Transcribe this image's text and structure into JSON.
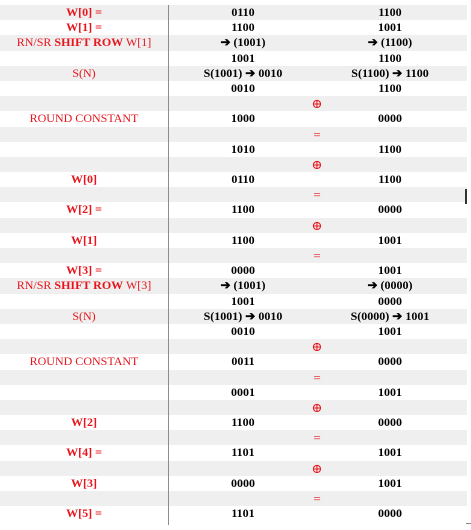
{
  "rows": [
    {
      "c1": "W[0] =",
      "c1_bold": true,
      "c2": "0110",
      "c3": "1100",
      "op": ""
    },
    {
      "c1": "W[1] =",
      "c1_bold": true,
      "c2": "1100",
      "c3": "1001",
      "op": ""
    },
    {
      "c1": "RN/SR SHIFT ROW W[1]",
      "c1_bold": false,
      "c2": "➔ (1001)",
      "c3": "➔ (1100)",
      "op": ""
    },
    {
      "c1": "",
      "c1_bold": false,
      "c2": "1001",
      "c3": "1100",
      "op": ""
    },
    {
      "c1": "S(N)",
      "c1_bold": false,
      "c2": "S(1001) ➔ 0010",
      "c3": "S(1100) ➔ 1100",
      "op": ""
    },
    {
      "c1": "",
      "c1_bold": false,
      "c2": "0010",
      "c3": "1100",
      "op": ""
    },
    {
      "c1": "",
      "c1_bold": false,
      "c2": "",
      "c3": "",
      "op": "⊕"
    },
    {
      "c1": "ROUND CONSTANT",
      "c1_bold": false,
      "c2": "1000",
      "c3": "0000",
      "op": ""
    },
    {
      "c1": "",
      "c1_bold": false,
      "c2": "",
      "c3": "",
      "op": "="
    },
    {
      "c1": "",
      "c1_bold": false,
      "c2": "1010",
      "c3": "1100",
      "op": ""
    },
    {
      "c1": "",
      "c1_bold": false,
      "c2": "",
      "c3": "",
      "op": "⊕"
    },
    {
      "c1": "W[0]",
      "c1_bold": true,
      "c2": "0110",
      "c3": "1100",
      "op": ""
    },
    {
      "c1": "",
      "c1_bold": false,
      "c2": "",
      "c3": "",
      "op": "="
    },
    {
      "c1": "W[2] =",
      "c1_bold": true,
      "c2": "1100",
      "c3": "0000",
      "op": ""
    },
    {
      "c1": "",
      "c1_bold": false,
      "c2": "",
      "c3": "",
      "op": "⊕"
    },
    {
      "c1": "W[1]",
      "c1_bold": true,
      "c2": "1100",
      "c3": "1001",
      "op": ""
    },
    {
      "c1": "",
      "c1_bold": false,
      "c2": "",
      "c3": "",
      "op": "="
    },
    {
      "c1": "W[3] =",
      "c1_bold": true,
      "c2": "0000",
      "c3": "1001",
      "op": ""
    },
    {
      "c1": "RN/SR SHIFT ROW W[3]",
      "c1_bold": false,
      "c2": "➔ (1001)",
      "c3": "➔ (0000)",
      "op": ""
    },
    {
      "c1": "",
      "c1_bold": false,
      "c2": "1001",
      "c3": "0000",
      "op": ""
    },
    {
      "c1": "S(N)",
      "c1_bold": false,
      "c2": "S(1001) ➔ 0010",
      "c3": "S(0000) ➔ 1001",
      "op": ""
    },
    {
      "c1": "",
      "c1_bold": false,
      "c2": "0010",
      "c3": "1001",
      "op": ""
    },
    {
      "c1": "",
      "c1_bold": false,
      "c2": "",
      "c3": "",
      "op": "⊕"
    },
    {
      "c1": "ROUND CONSTANT",
      "c1_bold": false,
      "c2": "0011",
      "c3": "0000",
      "op": ""
    },
    {
      "c1": "",
      "c1_bold": false,
      "c2": "",
      "c3": "",
      "op": "="
    },
    {
      "c1": "",
      "c1_bold": false,
      "c2": "0001",
      "c3": "1001",
      "op": ""
    },
    {
      "c1": "",
      "c1_bold": false,
      "c2": "",
      "c3": "",
      "op": "⊕"
    },
    {
      "c1": "W[2]",
      "c1_bold": true,
      "c2": "1100",
      "c3": "0000",
      "op": ""
    },
    {
      "c1": "",
      "c1_bold": false,
      "c2": "",
      "c3": "",
      "op": "="
    },
    {
      "c1": "W[4] =",
      "c1_bold": true,
      "c2": "1101",
      "c3": "1001",
      "op": ""
    },
    {
      "c1": "",
      "c1_bold": false,
      "c2": "",
      "c3": "",
      "op": "⊕"
    },
    {
      "c1": "W[3]",
      "c1_bold": true,
      "c2": "0000",
      "c3": "1001",
      "op": ""
    },
    {
      "c1": "",
      "c1_bold": false,
      "c2": "",
      "c3": "",
      "op": "="
    },
    {
      "c1": "W[5] =",
      "c1_bold": true,
      "c2": "1101",
      "c3": "0000",
      "op": ""
    }
  ]
}
